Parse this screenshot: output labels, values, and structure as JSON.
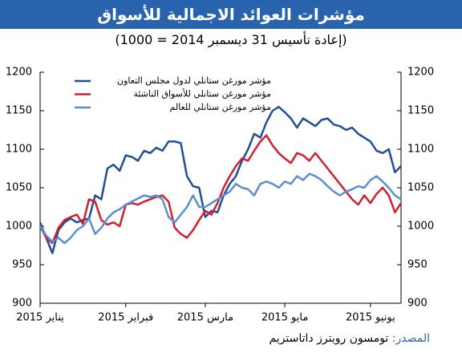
{
  "chart_data": {
    "type": "line",
    "title": "مؤشرات العوائد الاجمالية للأسواق",
    "subtitle": "(إعادة تأسيس 31 ديسمبر 2014 = 1000)",
    "source_label": "المصدر:",
    "source": "تومسون رويترز داتاستريم",
    "categories": [
      "يناير 2015",
      null,
      null,
      null,
      null,
      null,
      null,
      null,
      null,
      null,
      null,
      null,
      null,
      null,
      "فبراير 2015",
      null,
      null,
      null,
      null,
      null,
      null,
      null,
      null,
      null,
      null,
      null,
      null,
      "مارس 2015",
      null,
      null,
      null,
      null,
      null,
      null,
      null,
      null,
      null,
      null,
      null,
      null,
      "مايو 2015",
      null,
      null,
      null,
      null,
      null,
      null,
      null,
      null,
      null,
      null,
      null,
      null,
      null,
      "يونيو 2015",
      null,
      null,
      null,
      null,
      null
    ],
    "series": [
      {
        "name": "مؤشر مورغن ستانلي لدول مجلس التعاون",
        "color": "#1f4e96",
        "values": [
          1005,
          985,
          965,
          995,
          1005,
          1010,
          1005,
          1008,
          1010,
          1040,
          1035,
          1075,
          1080,
          1072,
          1092,
          1090,
          1085,
          1098,
          1095,
          1102,
          1098,
          1110,
          1110,
          1108,
          1065,
          1052,
          1050,
          1012,
          1020,
          1018,
          1040,
          1055,
          1065,
          1085,
          1100,
          1120,
          1115,
          1135,
          1150,
          1155,
          1148,
          1140,
          1128,
          1140,
          1135,
          1130,
          1138,
          1140,
          1132,
          1130,
          1125,
          1128,
          1120,
          1115,
          1110,
          1098,
          1095,
          1100,
          1070,
          1078
        ]
      },
      {
        "name": "مؤشر مورغن ستانلي للأسواق الناشئة",
        "color": "#d0202e",
        "values": [
          1000,
          985,
          978,
          998,
          1008,
          1012,
          1015,
          1003,
          1035,
          1032,
          1008,
          1002,
          1005,
          1000,
          1028,
          1030,
          1028,
          1032,
          1035,
          1038,
          1040,
          1032,
          998,
          990,
          985,
          995,
          1008,
          1020,
          1015,
          1030,
          1050,
          1065,
          1078,
          1088,
          1085,
          1098,
          1110,
          1118,
          1105,
          1095,
          1088,
          1082,
          1095,
          1092,
          1085,
          1095,
          1085,
          1075,
          1065,
          1055,
          1045,
          1035,
          1028,
          1040,
          1030,
          1042,
          1050,
          1040,
          1018,
          1030
        ]
      },
      {
        "name": "مؤشر مورغن ستانلي للعالم",
        "color": "#5a8fd0",
        "values": [
          1000,
          988,
          980,
          985,
          978,
          985,
          995,
          1000,
          1010,
          990,
          998,
          1010,
          1018,
          1022,
          1028,
          1032,
          1036,
          1040,
          1038,
          1040,
          1035,
          1012,
          1005,
          1015,
          1025,
          1040,
          1025,
          1025,
          1030,
          1035,
          1040,
          1045,
          1055,
          1050,
          1048,
          1040,
          1055,
          1058,
          1055,
          1050,
          1058,
          1055,
          1065,
          1060,
          1068,
          1065,
          1060,
          1052,
          1045,
          1040,
          1045,
          1048,
          1052,
          1050,
          1060,
          1065,
          1058,
          1050,
          1040,
          1035
        ]
      }
    ],
    "ylim": [
      900,
      1200
    ],
    "yticks": [
      900,
      950,
      1000,
      1050,
      1100,
      1150,
      1200
    ],
    "y2lim": [
      900,
      1200
    ],
    "y2ticks": [
      900,
      950,
      1000,
      1050,
      1100,
      1150,
      1200
    ],
    "legend": "top-left",
    "grid": false
  }
}
